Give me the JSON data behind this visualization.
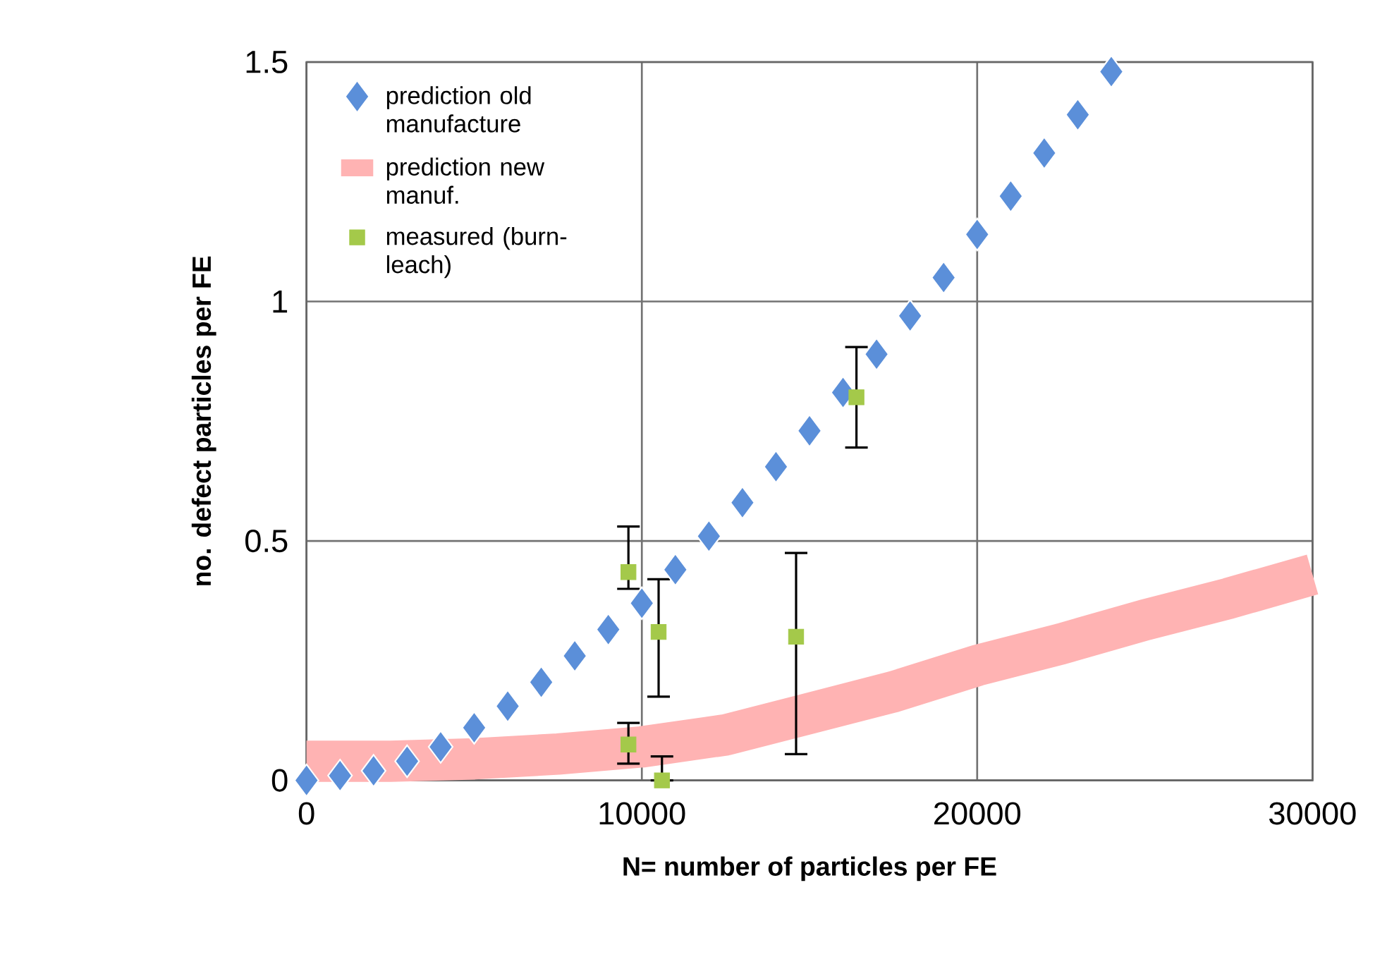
{
  "chart_data": {
    "type": "scatter",
    "xlabel": "N= number of particles per FE",
    "ylabel": "no. defect particles per FE",
    "xlim": [
      0,
      30000
    ],
    "ylim": [
      0,
      1.5
    ],
    "xticks": [
      0,
      10000,
      20000,
      30000
    ],
    "yticks": [
      0,
      0.5,
      1,
      1.5
    ],
    "grid": true,
    "legend": "top left",
    "series": [
      {
        "name": "prediction old manufacture",
        "marker": "diamond",
        "color": "#5b8fd9",
        "x": [
          0,
          1000,
          2000,
          3000,
          4000,
          5000,
          6000,
          7000,
          8000,
          9000,
          10000,
          11000,
          12000,
          13000,
          14000,
          15000,
          16000,
          17000,
          18000,
          19000,
          20000,
          21000,
          22000,
          23000,
          24000
        ],
        "values": [
          0,
          0.01,
          0.02,
          0.04,
          0.07,
          0.11,
          0.155,
          0.205,
          0.26,
          0.315,
          0.37,
          0.44,
          0.51,
          0.58,
          0.655,
          0.73,
          0.81,
          0.89,
          0.97,
          1.05,
          1.14,
          1.22,
          1.31,
          1.39,
          1.48
        ]
      },
      {
        "name": "prediction new manuf.",
        "type": "line",
        "marker": "none",
        "color": "#ffb3b3",
        "x": [
          0,
          2500,
          5000,
          7500,
          10000,
          12500,
          15000,
          17500,
          20000,
          22500,
          25000,
          27500,
          30000
        ],
        "values": [
          0.04,
          0.04,
          0.045,
          0.055,
          0.07,
          0.095,
          0.14,
          0.185,
          0.24,
          0.285,
          0.335,
          0.38,
          0.43
        ]
      },
      {
        "name": "measured (burn-leach)",
        "marker": "square",
        "color": "#a4c94a",
        "x": [
          9600,
          10500,
          9600,
          10600,
          14600,
          16400
        ],
        "values": [
          0.435,
          0.31,
          0.075,
          0,
          0.3,
          0.8
        ],
        "errors": [
          [
            0.4,
            0.53
          ],
          [
            0.175,
            0.42
          ],
          [
            0.035,
            0.12
          ],
          [
            0,
            0.05
          ],
          [
            0.055,
            0.475
          ],
          [
            0.695,
            0.905
          ]
        ]
      }
    ]
  }
}
